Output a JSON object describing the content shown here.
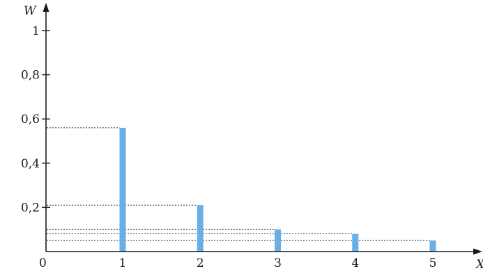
{
  "chart_data": {
    "type": "bar",
    "title": "",
    "xlabel": "X",
    "ylabel": "W",
    "origin_label": "0",
    "x": [
      1,
      2,
      3,
      4,
      5
    ],
    "x_tick_labels": [
      "1",
      "2",
      "3",
      "4",
      "5"
    ],
    "values": [
      0.56,
      0.21,
      0.1,
      0.08,
      0.05
    ],
    "ylim": [
      0,
      1
    ],
    "y_ticks": [
      0.2,
      0.4,
      0.6,
      0.8,
      1
    ],
    "y_tick_labels": [
      "0,2",
      "0,4",
      "0,6",
      "0,8",
      "1"
    ],
    "grid": false,
    "guide_lines": "dotted",
    "bar_color": "#6aaee6"
  }
}
